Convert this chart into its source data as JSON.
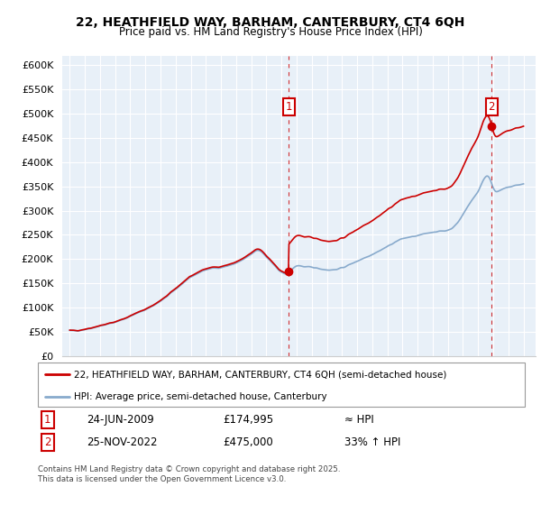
{
  "title": "22, HEATHFIELD WAY, BARHAM, CANTERBURY, CT4 6QH",
  "subtitle": "Price paid vs. HM Land Registry's House Price Index (HPI)",
  "legend_line1": "22, HEATHFIELD WAY, BARHAM, CANTERBURY, CT4 6QH (semi-detached house)",
  "legend_line2": "HPI: Average price, semi-detached house, Canterbury",
  "footnote": "Contains HM Land Registry data © Crown copyright and database right 2025.\nThis data is licensed under the Open Government Licence v3.0.",
  "annotation1_label": "1",
  "annotation1_date": "24-JUN-2009",
  "annotation1_price": "£174,995",
  "annotation1_hpi": "≈ HPI",
  "annotation2_label": "2",
  "annotation2_date": "25-NOV-2022",
  "annotation2_price": "£475,000",
  "annotation2_hpi": "33% ↑ HPI",
  "house_color": "#cc0000",
  "hpi_color": "#aaccee",
  "hpi_line_color": "#88aacc",
  "dashed_color": "#cc0000",
  "annotation_box_color": "#cc0000",
  "bg_color": "#e8f0f8",
  "ylim_min": 0,
  "ylim_max": 620000,
  "ytick_step": 50000,
  "sale1_year": 2009.48,
  "sale1_value": 174995,
  "sale2_year": 2022.9,
  "sale2_value": 475000,
  "xmin": 1994.5,
  "xmax": 2025.8
}
